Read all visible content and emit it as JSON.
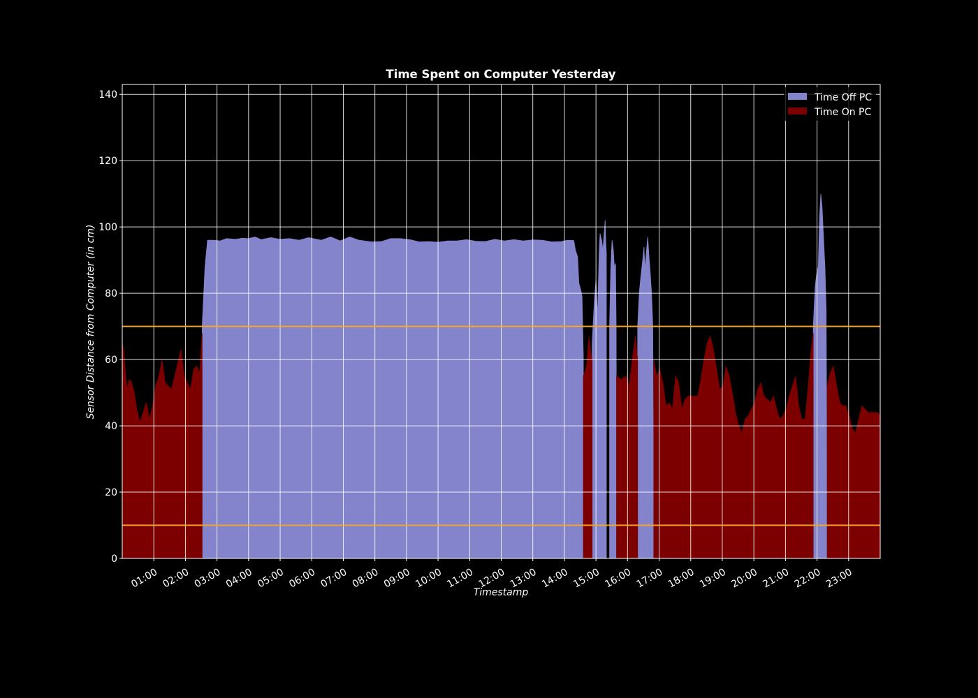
{
  "chart_data": {
    "type": "area",
    "title": "Time Spent on Computer Yesterday",
    "xlabel": "Timestamp",
    "ylabel": "Sensor Distance from Computer (in cm)",
    "xlim_hours": [
      0.0,
      24.0
    ],
    "ylim": [
      0,
      143
    ],
    "grid": true,
    "legend_position": "top-right",
    "x_ticks": [
      "01:00",
      "02:00",
      "03:00",
      "04:00",
      "05:00",
      "06:00",
      "07:00",
      "08:00",
      "09:00",
      "10:00",
      "11:00",
      "12:00",
      "13:00",
      "14:00",
      "15:00",
      "16:00",
      "17:00",
      "18:00",
      "19:00",
      "20:00",
      "21:00",
      "22:00",
      "23:00"
    ],
    "y_ticks": [
      0,
      20,
      40,
      60,
      80,
      100,
      120,
      140
    ],
    "thresholds": [
      {
        "value": 70,
        "color": "#f5a623"
      },
      {
        "value": 10,
        "color": "#f5a623"
      }
    ],
    "series": [
      {
        "name": "Time Off PC",
        "color": "#8484cd",
        "segments": [
          [
            [
              2.53,
              0
            ],
            [
              2.53,
              70
            ],
            [
              2.62,
              88
            ],
            [
              2.7,
              96
            ],
            [
              2.9,
              96
            ],
            [
              3.1,
              95.8
            ],
            [
              3.3,
              96.5
            ],
            [
              3.6,
              96.3
            ],
            [
              3.8,
              96.6
            ],
            [
              4.0,
              96.5
            ],
            [
              4.2,
              97
            ],
            [
              4.4,
              96.2
            ],
            [
              4.7,
              96.8
            ],
            [
              5.0,
              96.3
            ],
            [
              5.3,
              96.5
            ],
            [
              5.6,
              96
            ],
            [
              5.9,
              96.8
            ],
            [
              6.3,
              96
            ],
            [
              6.6,
              97
            ],
            [
              6.9,
              95.8
            ],
            [
              7.2,
              97
            ],
            [
              7.5,
              96
            ],
            [
              7.9,
              95.5
            ],
            [
              8.2,
              95.6
            ],
            [
              8.5,
              96.5
            ],
            [
              8.8,
              96.5
            ],
            [
              9.1,
              96.2
            ],
            [
              9.4,
              95.5
            ],
            [
              9.7,
              95.6
            ],
            [
              10.0,
              95.4
            ],
            [
              10.3,
              95.8
            ],
            [
              10.6,
              95.8
            ],
            [
              10.9,
              96.2
            ],
            [
              11.2,
              95.7
            ],
            [
              11.5,
              95.6
            ],
            [
              11.8,
              96.3
            ],
            [
              12.1,
              95.8
            ],
            [
              12.4,
              96.2
            ],
            [
              12.7,
              95.8
            ],
            [
              13.0,
              96.1
            ],
            [
              13.3,
              96
            ],
            [
              13.6,
              95.5
            ],
            [
              13.9,
              95.6
            ],
            [
              14.1,
              96
            ],
            [
              14.3,
              95.9
            ],
            [
              14.35,
              93
            ],
            [
              14.42,
              91
            ],
            [
              14.46,
              83
            ],
            [
              14.52,
              81
            ],
            [
              14.56,
              79
            ],
            [
              14.6,
              61
            ],
            [
              14.6,
              0
            ]
          ],
          [
            [
              14.88,
              0
            ],
            [
              14.88,
              65
            ],
            [
              14.95,
              78
            ],
            [
              15.0,
              84
            ],
            [
              15.05,
              73
            ],
            [
              15.1,
              92
            ],
            [
              15.13,
              98
            ],
            [
              15.18,
              96
            ],
            [
              15.22,
              93
            ],
            [
              15.25,
              97
            ],
            [
              15.29,
              102
            ],
            [
              15.31,
              96
            ],
            [
              15.33,
              92
            ],
            [
              15.33,
              0
            ]
          ],
          [
            [
              15.43,
              0
            ],
            [
              15.43,
              70
            ],
            [
              15.47,
              88
            ],
            [
              15.51,
              96
            ],
            [
              15.55,
              93
            ],
            [
              15.58,
              88
            ],
            [
              15.62,
              89
            ],
            [
              15.64,
              70
            ],
            [
              15.65,
              0
            ]
          ],
          [
            [
              16.32,
              0
            ],
            [
              16.32,
              70
            ],
            [
              16.37,
              80
            ],
            [
              16.42,
              85
            ],
            [
              16.48,
              90
            ],
            [
              16.52,
              94
            ],
            [
              16.55,
              87
            ],
            [
              16.6,
              93
            ],
            [
              16.64,
              97
            ],
            [
              16.68,
              91
            ],
            [
              16.72,
              86
            ],
            [
              16.76,
              80
            ],
            [
              16.8,
              70
            ],
            [
              16.83,
              0
            ]
          ],
          [
            [
              21.88,
              0
            ],
            [
              21.88,
              70
            ],
            [
              21.94,
              82
            ],
            [
              21.99,
              86
            ],
            [
              22.04,
              88
            ],
            [
              22.08,
              103
            ],
            [
              22.12,
              110
            ],
            [
              22.16,
              106
            ],
            [
              22.2,
              98
            ],
            [
              22.25,
              88
            ],
            [
              22.29,
              75
            ],
            [
              22.32,
              0
            ]
          ]
        ]
      },
      {
        "name": "Time On PC",
        "color": "#7c0000",
        "segments": [
          [
            [
              0.0,
              0
            ],
            [
              0.0,
              65
            ],
            [
              0.05,
              63
            ],
            [
              0.1,
              56
            ],
            [
              0.15,
              51
            ],
            [
              0.22,
              54
            ],
            [
              0.3,
              53
            ],
            [
              0.38,
              50
            ],
            [
              0.46,
              45
            ],
            [
              0.56,
              41
            ],
            [
              0.66,
              44
            ],
            [
              0.76,
              47
            ],
            [
              0.86,
              42
            ],
            [
              0.96,
              46
            ],
            [
              1.06,
              52
            ],
            [
              1.16,
              55
            ],
            [
              1.26,
              60
            ],
            [
              1.36,
              53
            ],
            [
              1.46,
              52
            ],
            [
              1.56,
              51
            ],
            [
              1.66,
              55
            ],
            [
              1.76,
              59
            ],
            [
              1.86,
              63
            ],
            [
              1.96,
              55
            ],
            [
              2.06,
              53
            ],
            [
              2.16,
              51
            ],
            [
              2.26,
              57
            ],
            [
              2.36,
              58
            ],
            [
              2.45,
              56
            ],
            [
              2.53,
              68
            ],
            [
              2.53,
              0
            ]
          ],
          [
            [
              14.6,
              0
            ],
            [
              14.6,
              55
            ],
            [
              14.7,
              58
            ],
            [
              14.78,
              67
            ],
            [
              14.84,
              62
            ],
            [
              14.88,
              60
            ],
            [
              14.88,
              0
            ]
          ],
          [
            [
              15.65,
              0
            ],
            [
              15.65,
              55
            ],
            [
              15.8,
              54
            ],
            [
              15.95,
              55
            ],
            [
              16.05,
              52
            ],
            [
              16.15,
              60
            ],
            [
              16.25,
              67
            ],
            [
              16.32,
              60
            ],
            [
              16.32,
              0
            ]
          ],
          [
            [
              16.83,
              0
            ],
            [
              16.83,
              60
            ],
            [
              16.92,
              55
            ],
            [
              17.02,
              57
            ],
            [
              17.12,
              53
            ],
            [
              17.22,
              46
            ],
            [
              17.32,
              47
            ],
            [
              17.42,
              45
            ],
            [
              17.52,
              55
            ],
            [
              17.62,
              53
            ],
            [
              17.72,
              45
            ],
            [
              17.82,
              48
            ],
            [
              17.92,
              49
            ],
            [
              18.02,
              49
            ],
            [
              18.12,
              49
            ],
            [
              18.22,
              49
            ],
            [
              18.32,
              54
            ],
            [
              18.42,
              60
            ],
            [
              18.52,
              65
            ],
            [
              18.62,
              67
            ],
            [
              18.72,
              63
            ],
            [
              18.82,
              57
            ],
            [
              18.92,
              51
            ],
            [
              19.02,
              52
            ],
            [
              19.12,
              58
            ],
            [
              19.22,
              55
            ],
            [
              19.32,
              50
            ],
            [
              19.42,
              44
            ],
            [
              19.52,
              40
            ],
            [
              19.62,
              38
            ],
            [
              19.72,
              42
            ],
            [
              19.82,
              43
            ],
            [
              19.92,
              45
            ],
            [
              20.02,
              47
            ],
            [
              20.12,
              51
            ],
            [
              20.22,
              53
            ],
            [
              20.32,
              49
            ],
            [
              20.42,
              48
            ],
            [
              20.52,
              47
            ],
            [
              20.62,
              49
            ],
            [
              20.72,
              45
            ],
            [
              20.82,
              42
            ],
            [
              20.92,
              43
            ],
            [
              21.02,
              45
            ],
            [
              21.12,
              49
            ],
            [
              21.22,
              52
            ],
            [
              21.32,
              55
            ],
            [
              21.42,
              46
            ],
            [
              21.52,
              42
            ],
            [
              21.62,
              42
            ],
            [
              21.72,
              52
            ],
            [
              21.8,
              62
            ],
            [
              21.88,
              68
            ],
            [
              21.88,
              0
            ]
          ],
          [
            [
              22.32,
              0
            ],
            [
              22.32,
              52
            ],
            [
              22.42,
              56
            ],
            [
              22.52,
              58
            ],
            [
              22.62,
              52
            ],
            [
              22.72,
              47
            ],
            [
              22.82,
              46
            ],
            [
              22.92,
              46
            ],
            [
              23.02,
              43
            ],
            [
              23.12,
              39
            ],
            [
              23.22,
              38
            ],
            [
              23.32,
              42
            ],
            [
              23.42,
              46
            ],
            [
              23.52,
              45
            ],
            [
              23.62,
              44
            ],
            [
              23.72,
              44
            ],
            [
              23.82,
              44
            ],
            [
              23.92,
              44
            ],
            [
              24.0,
              43
            ],
            [
              24.0,
              0
            ]
          ]
        ]
      }
    ]
  }
}
